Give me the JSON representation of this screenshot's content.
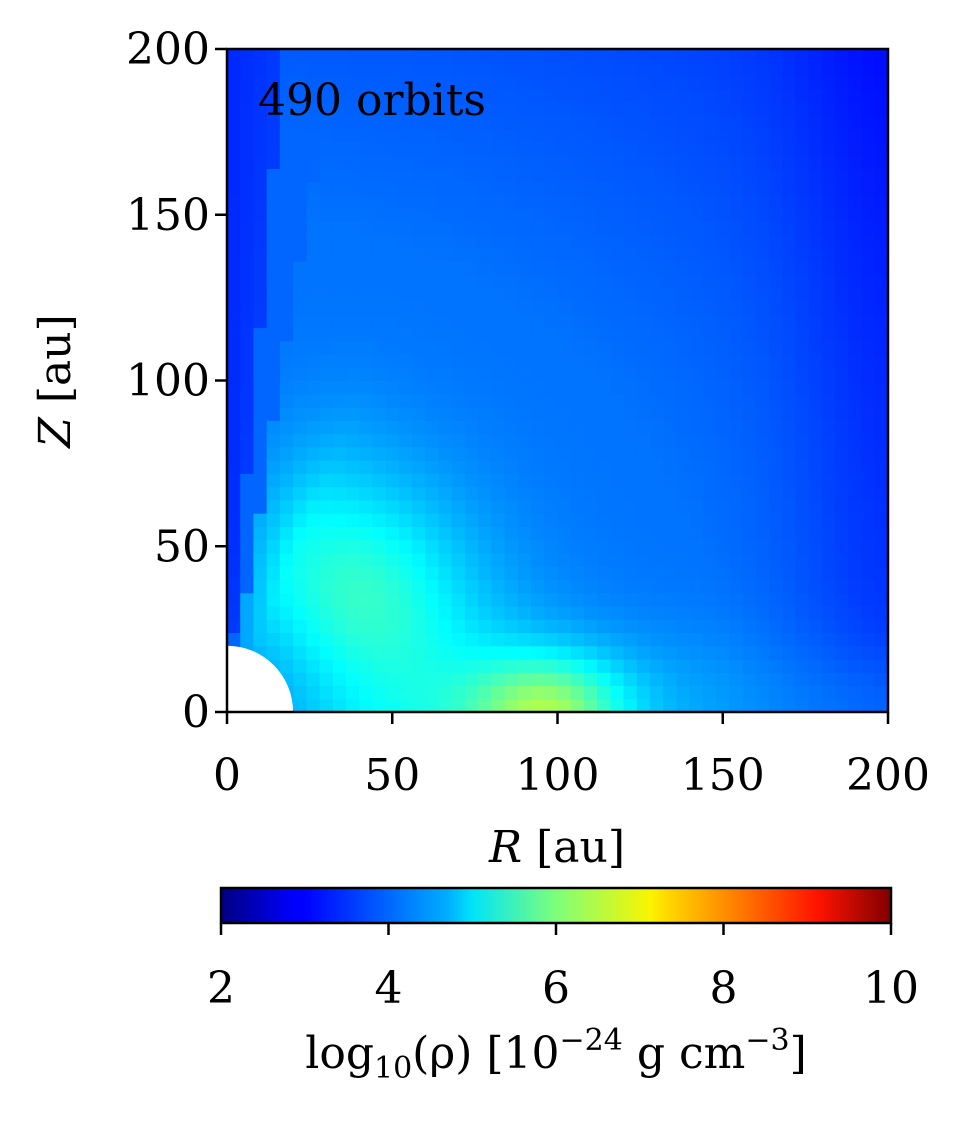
{
  "chart_data": {
    "type": "heatmap",
    "annotation": "490 orbits",
    "xlabel_var": "R",
    "xlabel_unit": "[au]",
    "ylabel_var": "Z",
    "ylabel_unit": "[au]",
    "xlim": [
      0,
      200
    ],
    "ylim": [
      0,
      200
    ],
    "xticks": [
      "0",
      "50",
      "100",
      "150",
      "200"
    ],
    "yticks": [
      "0",
      "50",
      "100",
      "150",
      "200"
    ],
    "xtick_values": [
      0,
      50,
      100,
      150,
      200
    ],
    "ytick_values": [
      0,
      50,
      100,
      150,
      200
    ],
    "inner_boundary_radius": 20,
    "colormap": "jet",
    "colorbar": {
      "orientation": "horizontal",
      "range": [
        2,
        10
      ],
      "ticks": [
        "2",
        "4",
        "6",
        "8",
        "10"
      ],
      "tick_values": [
        2,
        4,
        6,
        8,
        10
      ],
      "label_prefix": "log",
      "label_sub": "10",
      "label_mid": "(ρ) [10",
      "label_exp": "−24",
      "label_unit": " g cm",
      "label_unit_exp": "−3",
      "label_end": "]"
    },
    "density_features": {
      "background_log_rho": 3.9,
      "polar_wedge_log_rho": 3.3,
      "inner_envelope_peak": {
        "R": 40,
        "Z": 35,
        "log_rho": 5.2
      },
      "midplane_peak": {
        "R": 97,
        "Z": 5,
        "log_rho": 5.9
      }
    }
  }
}
